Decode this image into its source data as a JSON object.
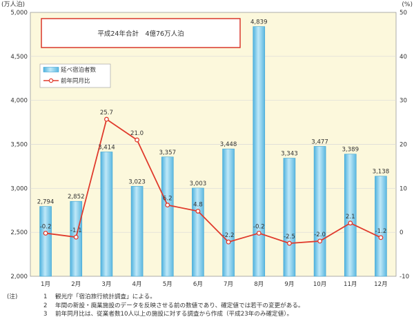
{
  "chart_data": {
    "type": "bar+line",
    "categories": [
      "1月",
      "2月",
      "3月",
      "4月",
      "5月",
      "6月",
      "7月",
      "8月",
      "9月",
      "10月",
      "11月",
      "12月"
    ],
    "series": [
      {
        "name": "延べ宿泊者数",
        "type": "bar",
        "axis": "left",
        "values": [
          2794,
          2852,
          3414,
          3023,
          3357,
          3003,
          3448,
          4839,
          3343,
          3477,
          3389,
          3138
        ],
        "labels": [
          "2,794",
          "2,852",
          "3,414",
          "3,023",
          "3,357",
          "3,003",
          "3,448",
          "4,839",
          "3,343",
          "3,477",
          "3,389",
          "3,138"
        ]
      },
      {
        "name": "前年同月比",
        "type": "line",
        "axis": "right",
        "values": [
          -0.2,
          -1.1,
          25.7,
          21.0,
          6.2,
          4.8,
          -2.2,
          -0.2,
          -2.5,
          -2.0,
          2.1,
          -1.2
        ],
        "labels": [
          "-0.2",
          "-1.1",
          "25.7",
          "21.0",
          "6.2",
          "4.8",
          "-2.2",
          "-0.2",
          "-2.5",
          "-2.0",
          "2.1",
          "-1.2"
        ]
      }
    ],
    "y_left": {
      "unit": "(万人泊)",
      "min": 2000,
      "max": 5000,
      "step": 500,
      "ticks": [
        "2,000",
        "2,500",
        "3,000",
        "3,500",
        "4,000",
        "4,500",
        "5,000"
      ]
    },
    "y_right": {
      "unit": "(%)",
      "min": -10,
      "max": 50,
      "step": 10,
      "ticks": [
        "-10",
        "0",
        "10",
        "20",
        "30",
        "40",
        "50"
      ]
    },
    "annotation": "平成24年合計　4億76万人泊",
    "legend_position": "top-left",
    "grid": true,
    "colors": {
      "plot_bg": "#fcf8dc",
      "bar": "#8ed3ef",
      "bar_edge": "#3fa6d6",
      "line": "#e03a2c",
      "box_border": "#d9372a",
      "grid": "#d9d9d9"
    }
  },
  "notes": {
    "head": "(注)",
    "items": [
      {
        "num": "1",
        "text": "観光庁「宿泊旅行統計調査」による。"
      },
      {
        "num": "2",
        "text": "年間の新設・廃業施設のデータを反映させる前の数値であり、確定値では若干の変更がある。"
      },
      {
        "num": "3",
        "text": "前年同月比は、従業者数10人以上の施設に対する調査から作成（平成23年のみ確定値）。"
      }
    ]
  }
}
